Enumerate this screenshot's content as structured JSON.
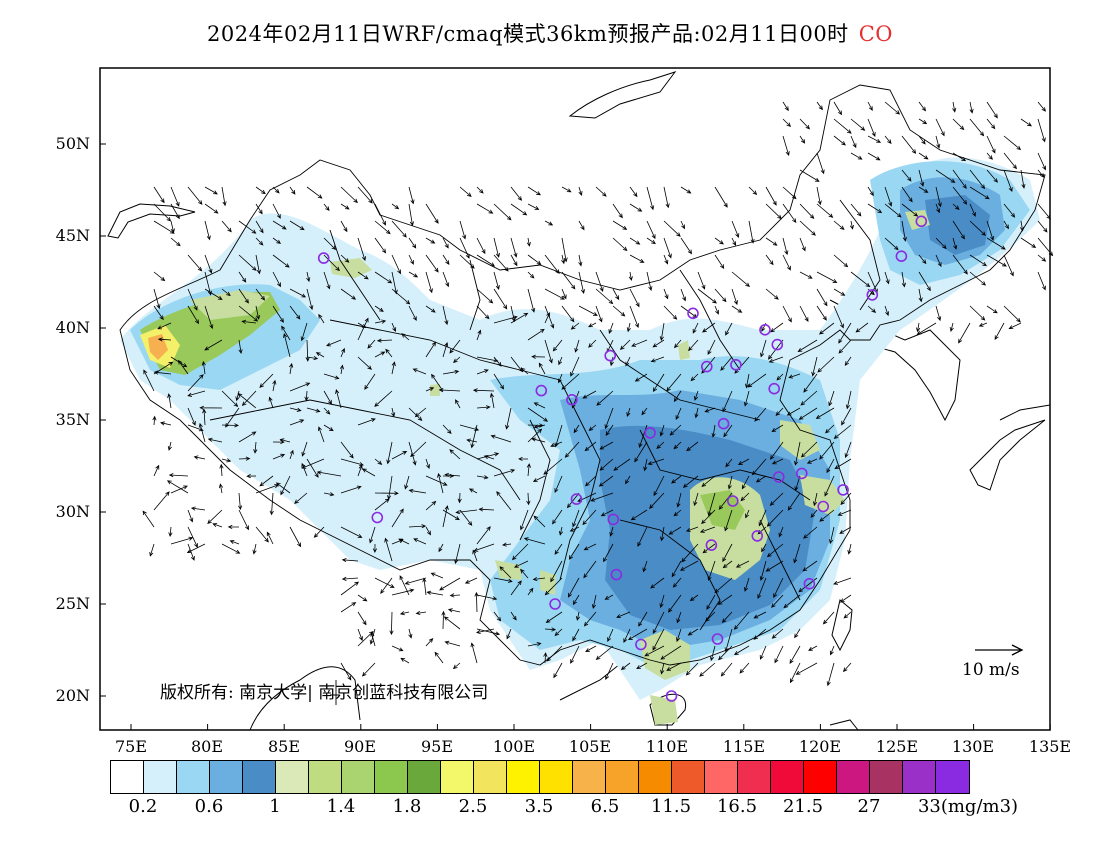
{
  "title": {
    "text": "2024年02月11日WRF/cmaq模式36km预报产品:02月11日00时",
    "species": "CO"
  },
  "map": {
    "lat_labels": [
      "50N",
      "45N",
      "40N",
      "35N",
      "30N",
      "25N",
      "20N"
    ],
    "lon_labels": [
      "75E",
      "80E",
      "85E",
      "90E",
      "95E",
      "100E",
      "105E",
      "110E",
      "115E",
      "120E",
      "125E",
      "130E",
      "135E"
    ],
    "copyright": "版权所有: 南京大学| 南京创蓝科技有限公司",
    "wind_reference": "10 m/s",
    "colors": {
      "very_light_blue": "#d6f0fb",
      "light_blue": "#9ad7f2",
      "mid_blue": "#6aafe0",
      "deep_blue": "#4a8cc6",
      "pale_green": "#c8dea0",
      "green": "#98c95a",
      "yellow": "#f4f06a",
      "orange": "#f7b050",
      "border": "#000000",
      "station_marker": "#8a2be2"
    },
    "stations": [
      {
        "lon": 87.6,
        "lat": 43.8
      },
      {
        "lon": 101.8,
        "lat": 36.6
      },
      {
        "lon": 103.8,
        "lat": 36.1
      },
      {
        "lon": 106.3,
        "lat": 38.5
      },
      {
        "lon": 111.7,
        "lat": 40.8
      },
      {
        "lon": 112.6,
        "lat": 37.9
      },
      {
        "lon": 114.5,
        "lat": 38.0
      },
      {
        "lon": 116.4,
        "lat": 39.9
      },
      {
        "lon": 117.2,
        "lat": 39.1
      },
      {
        "lon": 108.9,
        "lat": 34.3
      },
      {
        "lon": 113.7,
        "lat": 34.8
      },
      {
        "lon": 117.0,
        "lat": 36.7
      },
      {
        "lon": 123.4,
        "lat": 41.8
      },
      {
        "lon": 125.3,
        "lat": 43.9
      },
      {
        "lon": 126.6,
        "lat": 45.8
      },
      {
        "lon": 91.1,
        "lat": 29.7
      },
      {
        "lon": 104.1,
        "lat": 30.7
      },
      {
        "lon": 106.5,
        "lat": 29.6
      },
      {
        "lon": 106.7,
        "lat": 26.6
      },
      {
        "lon": 102.7,
        "lat": 25.0
      },
      {
        "lon": 108.3,
        "lat": 22.8
      },
      {
        "lon": 113.3,
        "lat": 23.1
      },
      {
        "lon": 110.3,
        "lat": 20.0
      },
      {
        "lon": 114.3,
        "lat": 30.6
      },
      {
        "lon": 112.9,
        "lat": 28.2
      },
      {
        "lon": 115.9,
        "lat": 28.7
      },
      {
        "lon": 117.3,
        "lat": 31.9
      },
      {
        "lon": 118.8,
        "lat": 32.1
      },
      {
        "lon": 120.2,
        "lat": 30.3
      },
      {
        "lon": 121.5,
        "lat": 31.2
      },
      {
        "lon": 119.3,
        "lat": 26.1
      }
    ]
  },
  "colorbar": {
    "colors": [
      "#ffffff",
      "#d6f0fb",
      "#9ad7f2",
      "#6aafe0",
      "#4a8cc6",
      "#dbe9b8",
      "#c0dc80",
      "#a9d46f",
      "#8cc84e",
      "#6aa83c",
      "#f3f76a",
      "#f2e45c",
      "#fff200",
      "#ffe100",
      "#f8b24a",
      "#f7a32a",
      "#f78b00",
      "#ee5a2a",
      "#ff6666",
      "#ef2e50",
      "#f00a3a",
      "#ff0000",
      "#cc1780",
      "#a83262",
      "#9a30c8",
      "#8a2be2"
    ],
    "labels": [
      "0.2",
      "0.6",
      "1",
      "1.4",
      "1.8",
      "2.5",
      "3.5",
      "6.5",
      "11.5",
      "16.5",
      "21.5",
      "27",
      "33(mg/m3)"
    ],
    "unit": ""
  }
}
